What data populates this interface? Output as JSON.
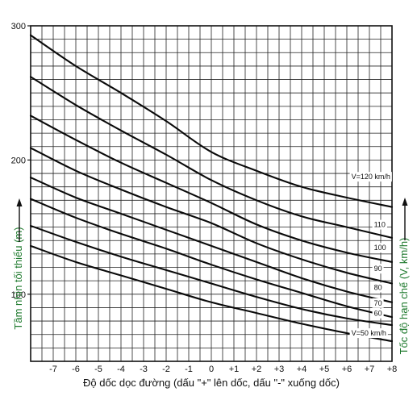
{
  "chart_data": {
    "type": "line",
    "xlabel": "Độ dốc dọc đường (dấu \"+\" lên dốc, dấu \"-\" xuống dốc)",
    "ylabel": "Tầm nhìn tối thiểu (m)",
    "y2label": "Tốc độ hạn chế (V, km/h)",
    "xlim": [
      -8,
      8
    ],
    "ylim": [
      50,
      300
    ],
    "grid": true,
    "x_ticks": [
      -7,
      -6,
      -5,
      -4,
      -3,
      -2,
      -1,
      0,
      1,
      2,
      3,
      4,
      5,
      6,
      7,
      8
    ],
    "x_tick_labels": [
      "-7",
      "-6",
      "-5",
      "-4",
      "-3",
      "-2",
      "-1",
      "0",
      "+1",
      "+2",
      "+3",
      "+4",
      "+5",
      "+6",
      "+7",
      "+8"
    ],
    "y_ticks": [
      100,
      200,
      300
    ],
    "y_tick_labels": [
      "100",
      "200",
      "300"
    ],
    "series": [
      {
        "name": "V=120 km/h",
        "x": [
          -8,
          -6,
          -4,
          -2,
          0,
          2,
          4,
          6,
          8
        ],
        "values": [
          293,
          270,
          250,
          229,
          206,
          192,
          180,
          172,
          165
        ]
      },
      {
        "name": "110",
        "x": [
          -8,
          -6,
          -4,
          -2,
          0,
          2,
          4,
          6,
          8
        ],
        "values": [
          262,
          241,
          222,
          204,
          185,
          170,
          158,
          150,
          142
        ]
      },
      {
        "name": "100",
        "x": [
          -8,
          -6,
          -4,
          -2,
          0,
          2,
          4,
          6,
          8
        ],
        "values": [
          233,
          215,
          198,
          183,
          168,
          152,
          140,
          131,
          124
        ]
      },
      {
        "name": "90",
        "x": [
          -8,
          -6,
          -4,
          -2,
          0,
          2,
          4,
          6,
          8
        ],
        "values": [
          209,
          192,
          178,
          165,
          153,
          138,
          126,
          116,
          108
        ]
      },
      {
        "name": "80",
        "x": [
          -8,
          -6,
          -4,
          -2,
          0,
          2,
          4,
          6,
          8
        ],
        "values": [
          187,
          172,
          160,
          148,
          136,
          124,
          112,
          102,
          94
        ]
      },
      {
        "name": "70",
        "x": [
          -8,
          -6,
          -4,
          -2,
          0,
          2,
          4,
          6,
          8
        ],
        "values": [
          171,
          157,
          145,
          134,
          122,
          111,
          101,
          91,
          83
        ]
      },
      {
        "name": "60",
        "x": [
          -8,
          -6,
          -4,
          -2,
          0,
          2,
          4,
          6,
          8
        ],
        "values": [
          151,
          139,
          128,
          118,
          108,
          98,
          89,
          82,
          77
        ]
      },
      {
        "name": "V=50 km/h",
        "x": [
          -8,
          -6,
          -4,
          -2,
          0,
          2,
          4,
          6,
          8
        ],
        "values": [
          136,
          124,
          114,
          104,
          94,
          86,
          78,
          71,
          65
        ]
      }
    ]
  }
}
